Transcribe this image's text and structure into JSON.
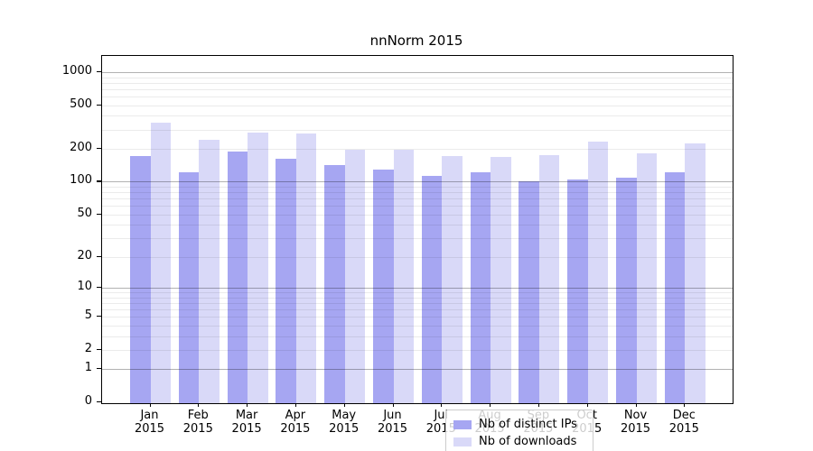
{
  "chart_data": {
    "type": "bar",
    "title": "nnNorm 2015",
    "months": [
      "Jan",
      "Feb",
      "Mar",
      "Apr",
      "May",
      "Jun",
      "Jul",
      "Aug",
      "Sep",
      "Oct",
      "Nov",
      "Dec"
    ],
    "year": "2015",
    "categories": [
      "Jan 2015",
      "Feb 2015",
      "Mar 2015",
      "Apr 2015",
      "May 2015",
      "Jun 2015",
      "Jul 2015",
      "Aug 2015",
      "Sep 2015",
      "Oct 2015",
      "Nov 2015",
      "Dec 2015"
    ],
    "series": [
      {
        "name": "Nb of distinct IPs",
        "color": "#a6a6f2",
        "values": [
          173,
          123,
          189,
          161,
          141,
          130,
          114,
          123,
          100,
          104,
          108,
          123
        ]
      },
      {
        "name": "Nb of downloads",
        "color": "#d9d9f8",
        "values": [
          344,
          243,
          283,
          275,
          198,
          196,
          172,
          168,
          176,
          232,
          183,
          225
        ]
      }
    ],
    "y_scale": "log10(1+x)",
    "y_ticks": [
      0,
      1,
      2,
      5,
      10,
      20,
      50,
      100,
      200,
      500,
      1000
    ],
    "ylim": [
      0,
      1400
    ],
    "xlabel": "",
    "ylabel": "",
    "grid": "horizontal; darker lines at 1,10,100,1000; faint minor lines at 2-9 per decade",
    "legend_position": "inside bottom-center",
    "legend_title": ""
  },
  "style_colors": {
    "major_grid": "#b4b4b4",
    "minor_grid": "#e9e9e9",
    "axis": "#000000",
    "background": "#ffffff",
    "legend_border": "#cccccc"
  }
}
